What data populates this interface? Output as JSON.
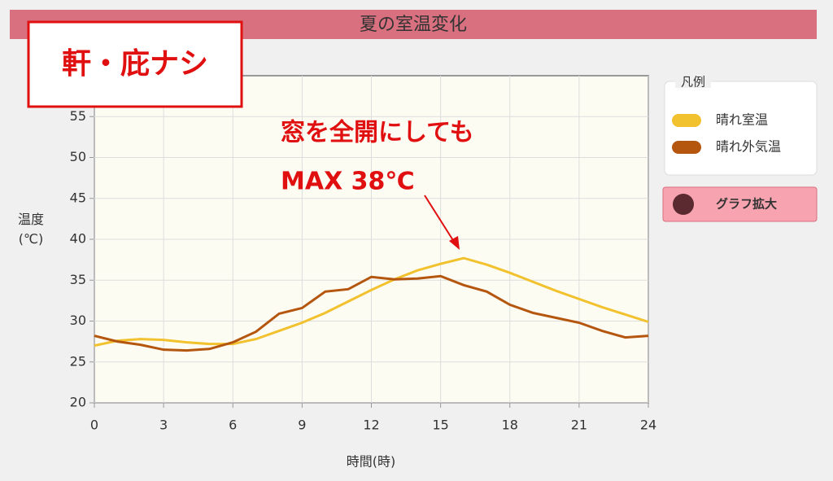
{
  "chart_data": {
    "type": "line",
    "title": "夏の室温変化",
    "badge": "軒・庇ナシ",
    "annotations": [
      "窓を全開にしても",
      "MAX 38℃"
    ],
    "x_label": "時間(時)",
    "y_label": "温度(℃)",
    "legend_title": "凡例",
    "legend_position": "right",
    "button": "グラフ拡大",
    "x": [
      0,
      1,
      2,
      3,
      4,
      5,
      6,
      7,
      8,
      9,
      10,
      11,
      12,
      13,
      14,
      15,
      16,
      17,
      18,
      19,
      20,
      21,
      22,
      23,
      24
    ],
    "series": [
      {
        "name": "晴れ室温",
        "color": "#f2c12e",
        "values": [
          27.0,
          27.6,
          27.8,
          27.7,
          27.4,
          27.2,
          27.2,
          27.8,
          28.8,
          29.8,
          31.0,
          32.4,
          33.8,
          35.1,
          36.2,
          37.0,
          37.7,
          36.9,
          35.9,
          34.8,
          33.7,
          32.7,
          31.7,
          30.8,
          29.9
        ]
      },
      {
        "name": "晴れ外気温",
        "color": "#b5560f",
        "values": [
          28.2,
          27.5,
          27.1,
          26.5,
          26.4,
          26.6,
          27.4,
          28.7,
          30.9,
          31.6,
          33.6,
          33.9,
          35.4,
          35.1,
          35.2,
          35.5,
          34.4,
          33.6,
          32.0,
          31.0,
          30.4,
          29.8,
          28.8,
          28.0,
          28.2
        ]
      }
    ],
    "xlim": [
      0,
      24
    ],
    "xticks": [
      0,
      3,
      6,
      9,
      12,
      15,
      18,
      21,
      24
    ],
    "ylim": [
      20,
      60
    ],
    "yticks": [
      20,
      25,
      30,
      35,
      40,
      45,
      50,
      55
    ],
    "grid": true
  }
}
